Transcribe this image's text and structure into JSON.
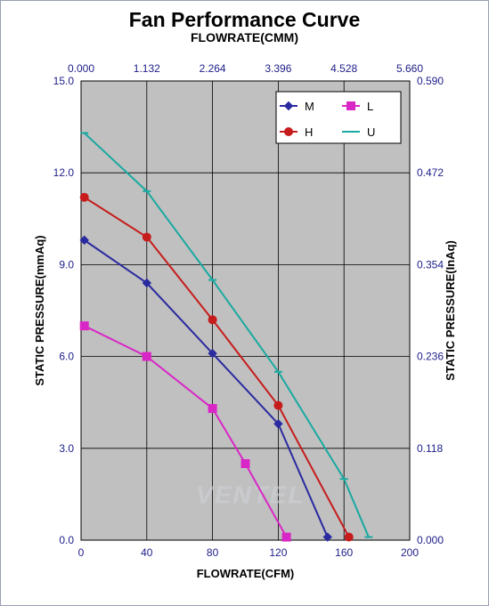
{
  "title": "Fan Performance Curve",
  "subtitle": "FLOWRATE(CMM)",
  "axes": {
    "x_bottom": {
      "label": "FLOWRATE(CFM)",
      "min": 0,
      "max": 200,
      "ticks": [
        0,
        40,
        80,
        120,
        160,
        200
      ]
    },
    "x_top": {
      "label": "FLOWRATE(CMM)",
      "min": 0,
      "max": 5.66,
      "ticks": [
        0.0,
        1.132,
        2.264,
        3.396,
        4.528,
        5.66
      ],
      "tick_labels": [
        "0.000",
        "1.132",
        "2.264",
        "3.396",
        "4.528",
        "5.660"
      ]
    },
    "y_left": {
      "label": "STATIC PRESSURE(mmAq)",
      "min": 0,
      "max": 15.0,
      "ticks": [
        0.0,
        3.0,
        6.0,
        9.0,
        12.0,
        15.0
      ],
      "tick_labels": [
        "0.0",
        "3.0",
        "6.0",
        "9.0",
        "12.0",
        "15.0"
      ]
    },
    "y_right": {
      "label": "STATIC PRESSURE(InAq)",
      "min": 0,
      "max": 0.59,
      "ticks": [
        0.0,
        0.118,
        0.236,
        0.354,
        0.472,
        0.59
      ],
      "tick_labels": [
        "0.000",
        "0.118",
        "0.236",
        "0.354",
        "0.472",
        "0.590"
      ]
    }
  },
  "plot": {
    "background": "#c0c0c0",
    "grid_color": "#000000",
    "frame_color": "#000000"
  },
  "legend": {
    "items": [
      {
        "key": "M",
        "label": "M",
        "color": "#2a2aa0",
        "marker": "diamond"
      },
      {
        "key": "L",
        "label": "L",
        "color": "#d926c6",
        "marker": "square"
      },
      {
        "key": "H",
        "label": "H",
        "color": "#c61c1c",
        "marker": "circle"
      },
      {
        "key": "U",
        "label": "U",
        "color": "#1aa9a0",
        "marker": "dash"
      }
    ]
  },
  "series": {
    "L": {
      "color": "#d926c6",
      "marker": "square",
      "line_width": 2,
      "points": [
        {
          "x": 2,
          "y": 7.0
        },
        {
          "x": 40,
          "y": 6.0
        },
        {
          "x": 80,
          "y": 4.3
        },
        {
          "x": 100,
          "y": 2.5
        },
        {
          "x": 125,
          "y": 0.1
        }
      ]
    },
    "M": {
      "color": "#2a2aa0",
      "marker": "diamond",
      "line_width": 2,
      "points": [
        {
          "x": 2,
          "y": 9.8
        },
        {
          "x": 40,
          "y": 8.4
        },
        {
          "x": 80,
          "y": 6.1
        },
        {
          "x": 120,
          "y": 3.8
        },
        {
          "x": 150,
          "y": 0.1
        }
      ]
    },
    "H": {
      "color": "#c61c1c",
      "marker": "circle",
      "line_width": 2,
      "points": [
        {
          "x": 2,
          "y": 11.2
        },
        {
          "x": 40,
          "y": 9.9
        },
        {
          "x": 80,
          "y": 7.2
        },
        {
          "x": 120,
          "y": 4.4
        },
        {
          "x": 163,
          "y": 0.1
        }
      ]
    },
    "U": {
      "color": "#1aa9a0",
      "marker": "dash",
      "line_width": 2,
      "points": [
        {
          "x": 2,
          "y": 13.3
        },
        {
          "x": 40,
          "y": 11.4
        },
        {
          "x": 80,
          "y": 8.5
        },
        {
          "x": 120,
          "y": 5.5
        },
        {
          "x": 160,
          "y": 2.0
        },
        {
          "x": 175,
          "y": 0.1
        }
      ]
    }
  },
  "watermark": "VENTEL"
}
